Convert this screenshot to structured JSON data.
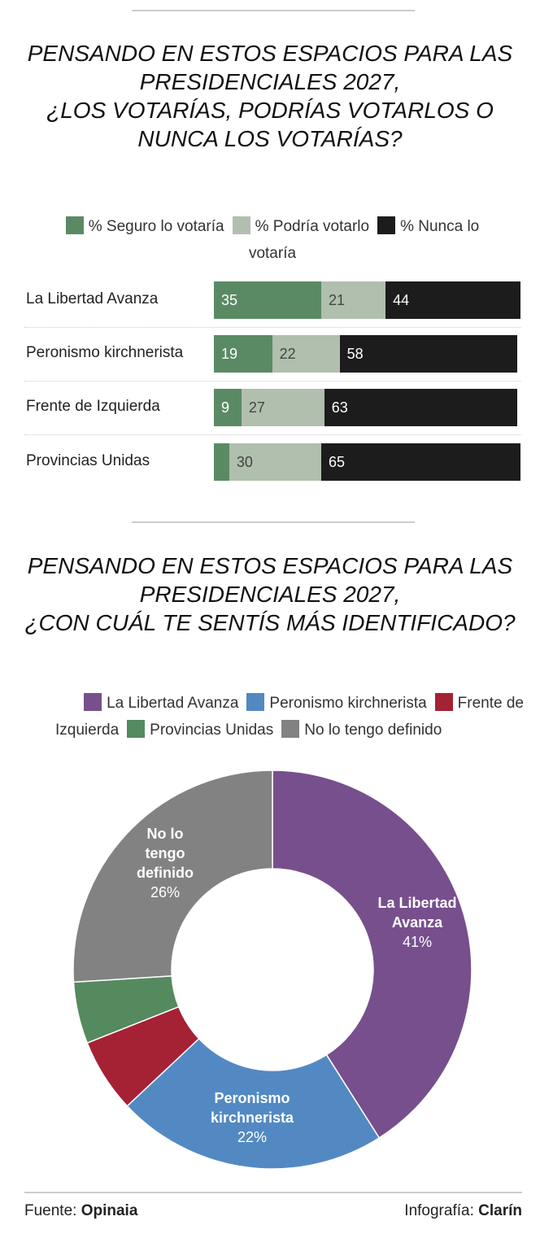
{
  "chart_data": [
    {
      "type": "bar",
      "orientation": "horizontal-stacked",
      "title_lines": [
        "PENSANDO EN ESTOS ESPACIOS PARA LAS",
        "PRESIDENCIALES 2027,",
        "¿LOS VOTARÍAS, PODRÍAS VOTARLOS O",
        "NUNCA LOS VOTARÍAS?"
      ],
      "categories": [
        "La Libertad Avanza",
        "Peronismo kirchnerista",
        "Frente de Izquierda",
        "Provincias Unidas"
      ],
      "series": [
        {
          "name": "% Seguro lo votaría",
          "color": "#5a8a64",
          "text_color": "#ffffff",
          "values": [
            35,
            19,
            9,
            5
          ],
          "labels": [
            "35",
            "19",
            "9",
            ""
          ]
        },
        {
          "name": "% Podría votarlo",
          "color": "#b1bfae",
          "text_color": "#444444",
          "values": [
            21,
            22,
            27,
            30
          ],
          "labels": [
            "21",
            "22",
            "27",
            "30"
          ]
        },
        {
          "name": "% Nunca lo votaría",
          "color": "#1c1c1c",
          "text_color": "#ffffff",
          "values": [
            44,
            58,
            63,
            65
          ],
          "labels": [
            "44",
            "58",
            "63",
            "65"
          ]
        }
      ],
      "legend_lines": [
        [
          "% Seguro lo votaría",
          "% Podría votarlo",
          "% Nunca lo"
        ],
        [
          "votaría"
        ]
      ],
      "legend": "top",
      "xlim": [
        0,
        100
      ]
    },
    {
      "type": "pie",
      "donut": true,
      "title_lines": [
        "PENSANDO EN ESTOS ESPACIOS PARA LAS",
        "PRESIDENCIALES 2027,",
        "¿CON CUÁL TE SENTÍS MÁS IDENTIFICADO?"
      ],
      "slices": [
        {
          "name": "La Libertad Avanza",
          "value": 41,
          "color": "#774f8d",
          "label_lines": [
            "La Libertad",
            "Avanza"
          ],
          "pct": "41%"
        },
        {
          "name": "Peronismo kirchnerista",
          "value": 22,
          "color": "#5389c2",
          "label_lines": [
            "Peronismo",
            "kirchnerista"
          ],
          "pct": "22%"
        },
        {
          "name": "Frente de Izquierda",
          "value": 6,
          "color": "#a52134"
        },
        {
          "name": "Provincias Unidas",
          "value": 5,
          "color": "#558a5f"
        },
        {
          "name": "No lo tengo definido",
          "value": 26,
          "color": "#828282",
          "label_lines": [
            "No lo",
            "tengo",
            "definido"
          ],
          "pct": "26%"
        }
      ],
      "legend_text": {
        "l1": [
          "La Libertad Avanza",
          "Peronismo kirchnerista",
          "Frente de"
        ],
        "l2": [
          "Izquierda",
          "Provincias Unidas",
          "No lo tengo definido"
        ]
      },
      "legend": "top"
    }
  ],
  "footer": {
    "source_label": "Fuente:",
    "source": "Opinaia",
    "credit_label": "Infografía:",
    "credit": "Clarín"
  }
}
